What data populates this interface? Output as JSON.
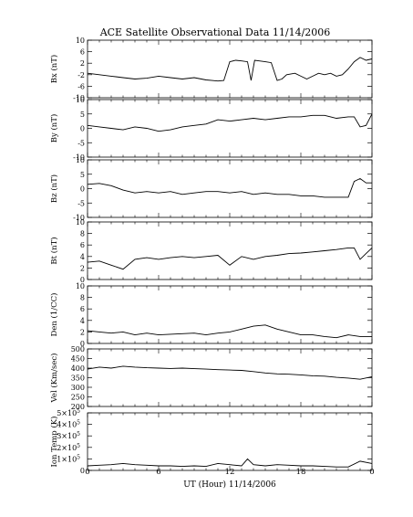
{
  "chart_data": {
    "type": "line",
    "title": "ACE Satellite Observational Data   11/14/2006",
    "xlabel": "UT (Hour)   11/14/2006",
    "x_ticks": [
      "0",
      "6",
      "12",
      "18",
      "0"
    ],
    "x_range": [
      0,
      24
    ],
    "panels": [
      {
        "ylabel": "Bx (nT)",
        "ylim": [
          -10,
          10
        ],
        "y_ticks": [
          "10",
          "6",
          "2",
          "-2",
          "-6",
          "-10"
        ],
        "series": {
          "x": [
            0,
            1,
            2,
            3,
            4,
            5,
            6,
            7,
            8,
            9,
            10,
            10.5,
            11,
            11.5,
            12,
            12.5,
            13,
            13.5,
            13.8,
            14.1,
            14.5,
            15,
            15.5,
            16,
            16.4,
            16.8,
            17.5,
            18,
            18.5,
            19,
            19.5,
            20,
            20.5,
            21,
            21.5,
            22,
            22.5,
            23,
            23.5,
            24
          ],
          "y": [
            -1.5,
            -2.0,
            -2.5,
            -3.0,
            -3.5,
            -3.2,
            -2.5,
            -3.0,
            -3.5,
            -3.0,
            -3.8,
            -4.0,
            -4.2,
            -4.0,
            2.5,
            3.0,
            2.8,
            2.5,
            -4.0,
            3.0,
            2.8,
            2.5,
            2.2,
            -4.0,
            -3.5,
            -2.0,
            -1.5,
            -2.5,
            -3.5,
            -2.5,
            -1.5,
            -2.0,
            -1.5,
            -2.5,
            -2.0,
            0.0,
            2.5,
            4.0,
            3.0,
            3.5
          ]
        }
      },
      {
        "ylabel": "By (nT)",
        "ylim": [
          -10,
          10
        ],
        "y_ticks": [
          "10",
          "5",
          "0",
          "-5",
          "-10"
        ],
        "series": {
          "x": [
            0,
            1,
            2,
            3,
            4,
            5,
            6,
            7,
            8,
            9,
            10,
            11,
            12,
            13,
            14,
            15,
            16,
            17,
            18,
            19,
            20,
            21,
            22,
            22.5,
            23,
            23.5,
            24
          ],
          "y": [
            1.0,
            0.5,
            0.0,
            -0.5,
            0.5,
            0.0,
            -1.0,
            -0.5,
            0.5,
            1.0,
            1.5,
            3.0,
            2.5,
            3.0,
            3.5,
            3.0,
            3.5,
            4.0,
            4.0,
            4.5,
            4.5,
            3.5,
            4.0,
            4.0,
            0.5,
            1.0,
            5.0
          ]
        }
      },
      {
        "ylabel": "Bz (nT)",
        "ylim": [
          -10,
          10
        ],
        "y_ticks": [
          "10",
          "5",
          "0",
          "-5",
          "-10"
        ],
        "series": {
          "x": [
            0,
            1,
            2,
            3,
            4,
            5,
            6,
            7,
            8,
            9,
            10,
            11,
            12,
            13,
            14,
            15,
            16,
            17,
            18,
            19,
            20,
            21,
            22,
            22.5,
            23,
            23.5,
            24
          ],
          "y": [
            1.5,
            1.8,
            1.0,
            -0.5,
            -1.5,
            -1.0,
            -1.5,
            -1.0,
            -2.0,
            -1.5,
            -1.0,
            -1.0,
            -1.5,
            -1.0,
            -2.0,
            -1.5,
            -2.0,
            -2.0,
            -2.5,
            -2.5,
            -3.0,
            -3.0,
            -3.0,
            2.5,
            3.5,
            2.0,
            2.0
          ]
        }
      },
      {
        "ylabel": "Bt (nT)",
        "ylim": [
          0,
          10
        ],
        "y_ticks": [
          "10",
          "8",
          "6",
          "4",
          "2",
          "0"
        ],
        "series": {
          "x": [
            0,
            1,
            2,
            3,
            4,
            5,
            6,
            7,
            8,
            9,
            10,
            11,
            12,
            13,
            14,
            15,
            16,
            17,
            18,
            19,
            20,
            21,
            22,
            22.5,
            23,
            23.5,
            24
          ],
          "y": [
            3.0,
            3.2,
            2.5,
            1.8,
            3.5,
            3.8,
            3.5,
            3.8,
            4.0,
            3.8,
            4.0,
            4.2,
            2.5,
            4.0,
            3.5,
            4.0,
            4.2,
            4.5,
            4.6,
            4.8,
            5.0,
            5.2,
            5.5,
            5.5,
            3.5,
            4.5,
            5.5
          ]
        }
      },
      {
        "ylabel": "Den (1/CC)",
        "ylim": [
          0,
          10
        ],
        "y_ticks": [
          "10",
          "8",
          "6",
          "4",
          "2",
          "0"
        ],
        "series": {
          "x": [
            0,
            1,
            2,
            3,
            4,
            5,
            6,
            7,
            8,
            9,
            10,
            11,
            12,
            13,
            14,
            15,
            16,
            17,
            18,
            19,
            20,
            21,
            22,
            23,
            24
          ],
          "y": [
            2.2,
            2.0,
            1.8,
            2.0,
            1.5,
            1.8,
            1.5,
            1.6,
            1.7,
            1.8,
            1.5,
            1.8,
            2.0,
            2.5,
            3.0,
            3.2,
            2.5,
            2.0,
            1.5,
            1.5,
            1.2,
            1.0,
            1.5,
            1.2,
            1.2
          ]
        }
      },
      {
        "ylabel": "Vel (Km/sec)",
        "ylim": [
          200,
          500
        ],
        "y_ticks": [
          "500",
          "450",
          "400",
          "350",
          "300",
          "250",
          "200"
        ],
        "series": {
          "x": [
            0,
            1,
            2,
            3,
            4,
            5,
            6,
            7,
            8,
            9,
            10,
            11,
            12,
            13,
            14,
            15,
            16,
            17,
            18,
            19,
            20,
            21,
            22,
            23,
            24
          ],
          "y": [
            395,
            405,
            400,
            410,
            405,
            402,
            400,
            398,
            400,
            397,
            395,
            392,
            390,
            388,
            382,
            375,
            370,
            368,
            365,
            360,
            358,
            352,
            348,
            342,
            355
          ]
        }
      },
      {
        "ylabel": "Ion Temp (K)",
        "ylim": [
          0,
          500000
        ],
        "y_ticks_base": [
          "5×10",
          "4×10",
          "3×10",
          "2×10",
          "1×10",
          "0"
        ],
        "y_ticks_exp": "5",
        "series": {
          "x": [
            0,
            1,
            2,
            3,
            4,
            5,
            6,
            7,
            8,
            9,
            10,
            11,
            12,
            13,
            13.5,
            14,
            15,
            16,
            17,
            18,
            19,
            20,
            21,
            22,
            23,
            24
          ],
          "y": [
            40000,
            45000,
            50000,
            60000,
            50000,
            45000,
            40000,
            40000,
            35000,
            40000,
            35000,
            60000,
            50000,
            40000,
            100000,
            50000,
            40000,
            50000,
            45000,
            40000,
            40000,
            35000,
            30000,
            30000,
            80000,
            60000
          ]
        }
      }
    ]
  }
}
